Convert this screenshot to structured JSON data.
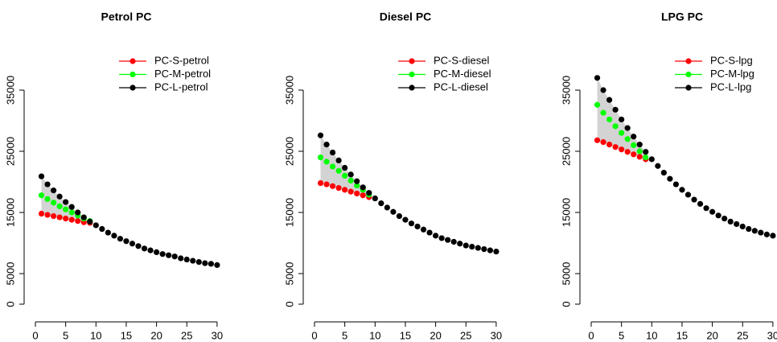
{
  "chart_data": [
    {
      "type": "line",
      "title": "Petrol PC",
      "x": [
        1,
        2,
        3,
        4,
        5,
        6,
        7,
        8,
        9,
        10,
        11,
        12,
        13,
        14,
        15,
        16,
        17,
        18,
        19,
        20,
        21,
        22,
        23,
        24,
        25,
        26,
        27,
        28,
        29,
        30
      ],
      "xlim": [
        0,
        31
      ],
      "xticks": [
        0,
        5,
        10,
        15,
        20,
        25,
        30
      ],
      "ylim": [
        0,
        41000
      ],
      "yticks": [
        0,
        5000,
        15000,
        25000,
        35000
      ],
      "legend": "topright",
      "series": [
        {
          "name": "PC-S-petrol",
          "color": "#ff0000",
          "values": [
            14800,
            14600,
            14400,
            14200,
            14000,
            13800,
            13600,
            13400,
            13300,
            null,
            null,
            null,
            null,
            null,
            null,
            null,
            null,
            null,
            null,
            null,
            null,
            null,
            null,
            null,
            null,
            null,
            null,
            null,
            null,
            null
          ]
        },
        {
          "name": "PC-M-petrol",
          "color": "#00ff00",
          "values": [
            17800,
            17200,
            16600,
            16000,
            15500,
            15000,
            14500,
            14000,
            13600,
            null,
            null,
            null,
            null,
            null,
            null,
            null,
            null,
            null,
            null,
            null,
            null,
            null,
            null,
            null,
            null,
            null,
            null,
            null,
            null,
            null
          ]
        },
        {
          "name": "PC-L-petrol",
          "color": "#000000",
          "values": [
            20900,
            19600,
            18600,
            17600,
            16700,
            15900,
            15000,
            14200,
            13500,
            12900,
            12300,
            11700,
            11200,
            10700,
            10300,
            9900,
            9500,
            9100,
            8800,
            8500,
            8200,
            8000,
            7800,
            7500,
            7300,
            7100,
            6900,
            6700,
            6600,
            6400
          ]
        }
      ]
    },
    {
      "type": "line",
      "title": "Diesel PC",
      "x": [
        1,
        2,
        3,
        4,
        5,
        6,
        7,
        8,
        9,
        10,
        11,
        12,
        13,
        14,
        15,
        16,
        17,
        18,
        19,
        20,
        21,
        22,
        23,
        24,
        25,
        26,
        27,
        28,
        29,
        30
      ],
      "xlim": [
        0,
        31
      ],
      "xticks": [
        0,
        5,
        10,
        15,
        20,
        25,
        30
      ],
      "ylim": [
        0,
        41000
      ],
      "yticks": [
        0,
        5000,
        15000,
        25000,
        35000
      ],
      "legend": "topright",
      "series": [
        {
          "name": "PC-S-diesel",
          "color": "#ff0000",
          "values": [
            19800,
            19600,
            19300,
            19000,
            18700,
            18400,
            18100,
            17800,
            17500,
            null,
            null,
            null,
            null,
            null,
            null,
            null,
            null,
            null,
            null,
            null,
            null,
            null,
            null,
            null,
            null,
            null,
            null,
            null,
            null,
            null
          ]
        },
        {
          "name": "PC-M-diesel",
          "color": "#00ff00",
          "values": [
            24000,
            23300,
            22500,
            21800,
            21000,
            20200,
            19400,
            18700,
            17900,
            null,
            null,
            null,
            null,
            null,
            null,
            null,
            null,
            null,
            null,
            null,
            null,
            null,
            null,
            null,
            null,
            null,
            null,
            null,
            null,
            null
          ]
        },
        {
          "name": "PC-L-diesel",
          "color": "#000000",
          "values": [
            27600,
            26100,
            24800,
            23500,
            22300,
            21200,
            20100,
            19100,
            18200,
            17300,
            16500,
            15800,
            15100,
            14400,
            13800,
            13200,
            12700,
            12200,
            11700,
            11200,
            10800,
            10500,
            10200,
            9900,
            9600,
            9400,
            9200,
            9000,
            8800,
            8600
          ]
        }
      ]
    },
    {
      "type": "line",
      "title": "LPG PC",
      "x": [
        1,
        2,
        3,
        4,
        5,
        6,
        7,
        8,
        9,
        10,
        11,
        12,
        13,
        14,
        15,
        16,
        17,
        18,
        19,
        20,
        21,
        22,
        23,
        24,
        25,
        26,
        27,
        28,
        29,
        30
      ],
      "xlim": [
        0,
        31
      ],
      "xticks": [
        0,
        5,
        10,
        15,
        20,
        25,
        30
      ],
      "ylim": [
        0,
        41000
      ],
      "yticks": [
        0,
        5000,
        15000,
        25000,
        35000
      ],
      "legend": "topright",
      "series": [
        {
          "name": "PC-S-lpg",
          "color": "#ff0000",
          "values": [
            26800,
            26500,
            26100,
            25700,
            25300,
            24900,
            24500,
            24100,
            23700,
            null,
            null,
            null,
            null,
            null,
            null,
            null,
            null,
            null,
            null,
            null,
            null,
            null,
            null,
            null,
            null,
            null,
            null,
            null,
            null,
            null
          ]
        },
        {
          "name": "PC-M-lpg",
          "color": "#00ff00",
          "values": [
            32600,
            31300,
            30200,
            29100,
            28000,
            27000,
            26000,
            25000,
            24000,
            null,
            null,
            null,
            null,
            null,
            null,
            null,
            null,
            null,
            null,
            null,
            null,
            null,
            null,
            null,
            null,
            null,
            null,
            null,
            null,
            null
          ]
        },
        {
          "name": "PC-L-lpg",
          "color": "#000000",
          "values": [
            37000,
            35000,
            33400,
            31800,
            30200,
            28800,
            27400,
            26100,
            24900,
            23700,
            22600,
            21500,
            20500,
            19600,
            18700,
            17900,
            17100,
            16400,
            15700,
            15100,
            14500,
            14000,
            13500,
            13100,
            12700,
            12300,
            12000,
            11700,
            11400,
            11200
          ]
        }
      ]
    }
  ]
}
